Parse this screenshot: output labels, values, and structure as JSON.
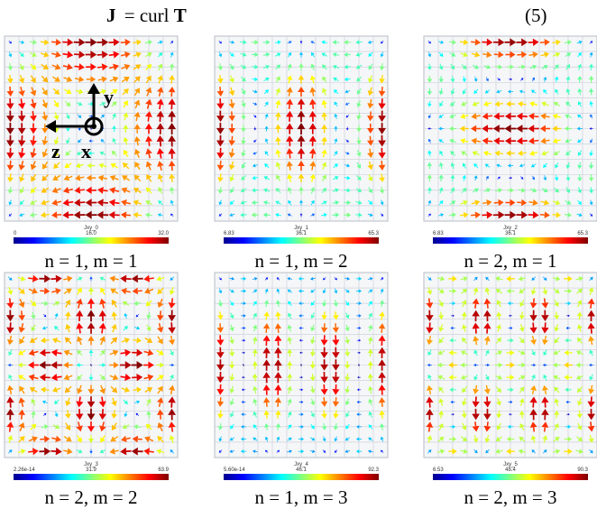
{
  "equation": {
    "lhs": "J",
    "operator": "= curl",
    "rhs": "T",
    "number": "(5)"
  },
  "axes_overlay": {
    "y": "y",
    "z": "z",
    "x": "x"
  },
  "panels": [
    {
      "title": "Jxy_0",
      "colorbar": [
        "0",
        "16.0",
        "32.0"
      ],
      "caption": "n = 1, m = 1"
    },
    {
      "title": "Jxy_1",
      "colorbar": [
        "6.83",
        "36.1",
        "65.3"
      ],
      "caption": "n = 1, m = 2"
    },
    {
      "title": "Jxy_2",
      "colorbar": [
        "6.83",
        "36.1",
        "65.3"
      ],
      "caption": "n = 2, m = 1"
    },
    {
      "title": "Jxy_3",
      "colorbar": [
        "2.26e-14",
        "31.9",
        "63.9"
      ],
      "caption": "n = 2, m = 2"
    },
    {
      "title": "Jxy_4",
      "colorbar": [
        "5.60e-14",
        "46.1",
        "92.3"
      ],
      "caption": "n = 1, m = 3"
    },
    {
      "title": "Jxy_5",
      "colorbar": [
        "6.53",
        "48.4",
        "90.3"
      ],
      "caption": "n = 2, m = 3"
    }
  ]
}
